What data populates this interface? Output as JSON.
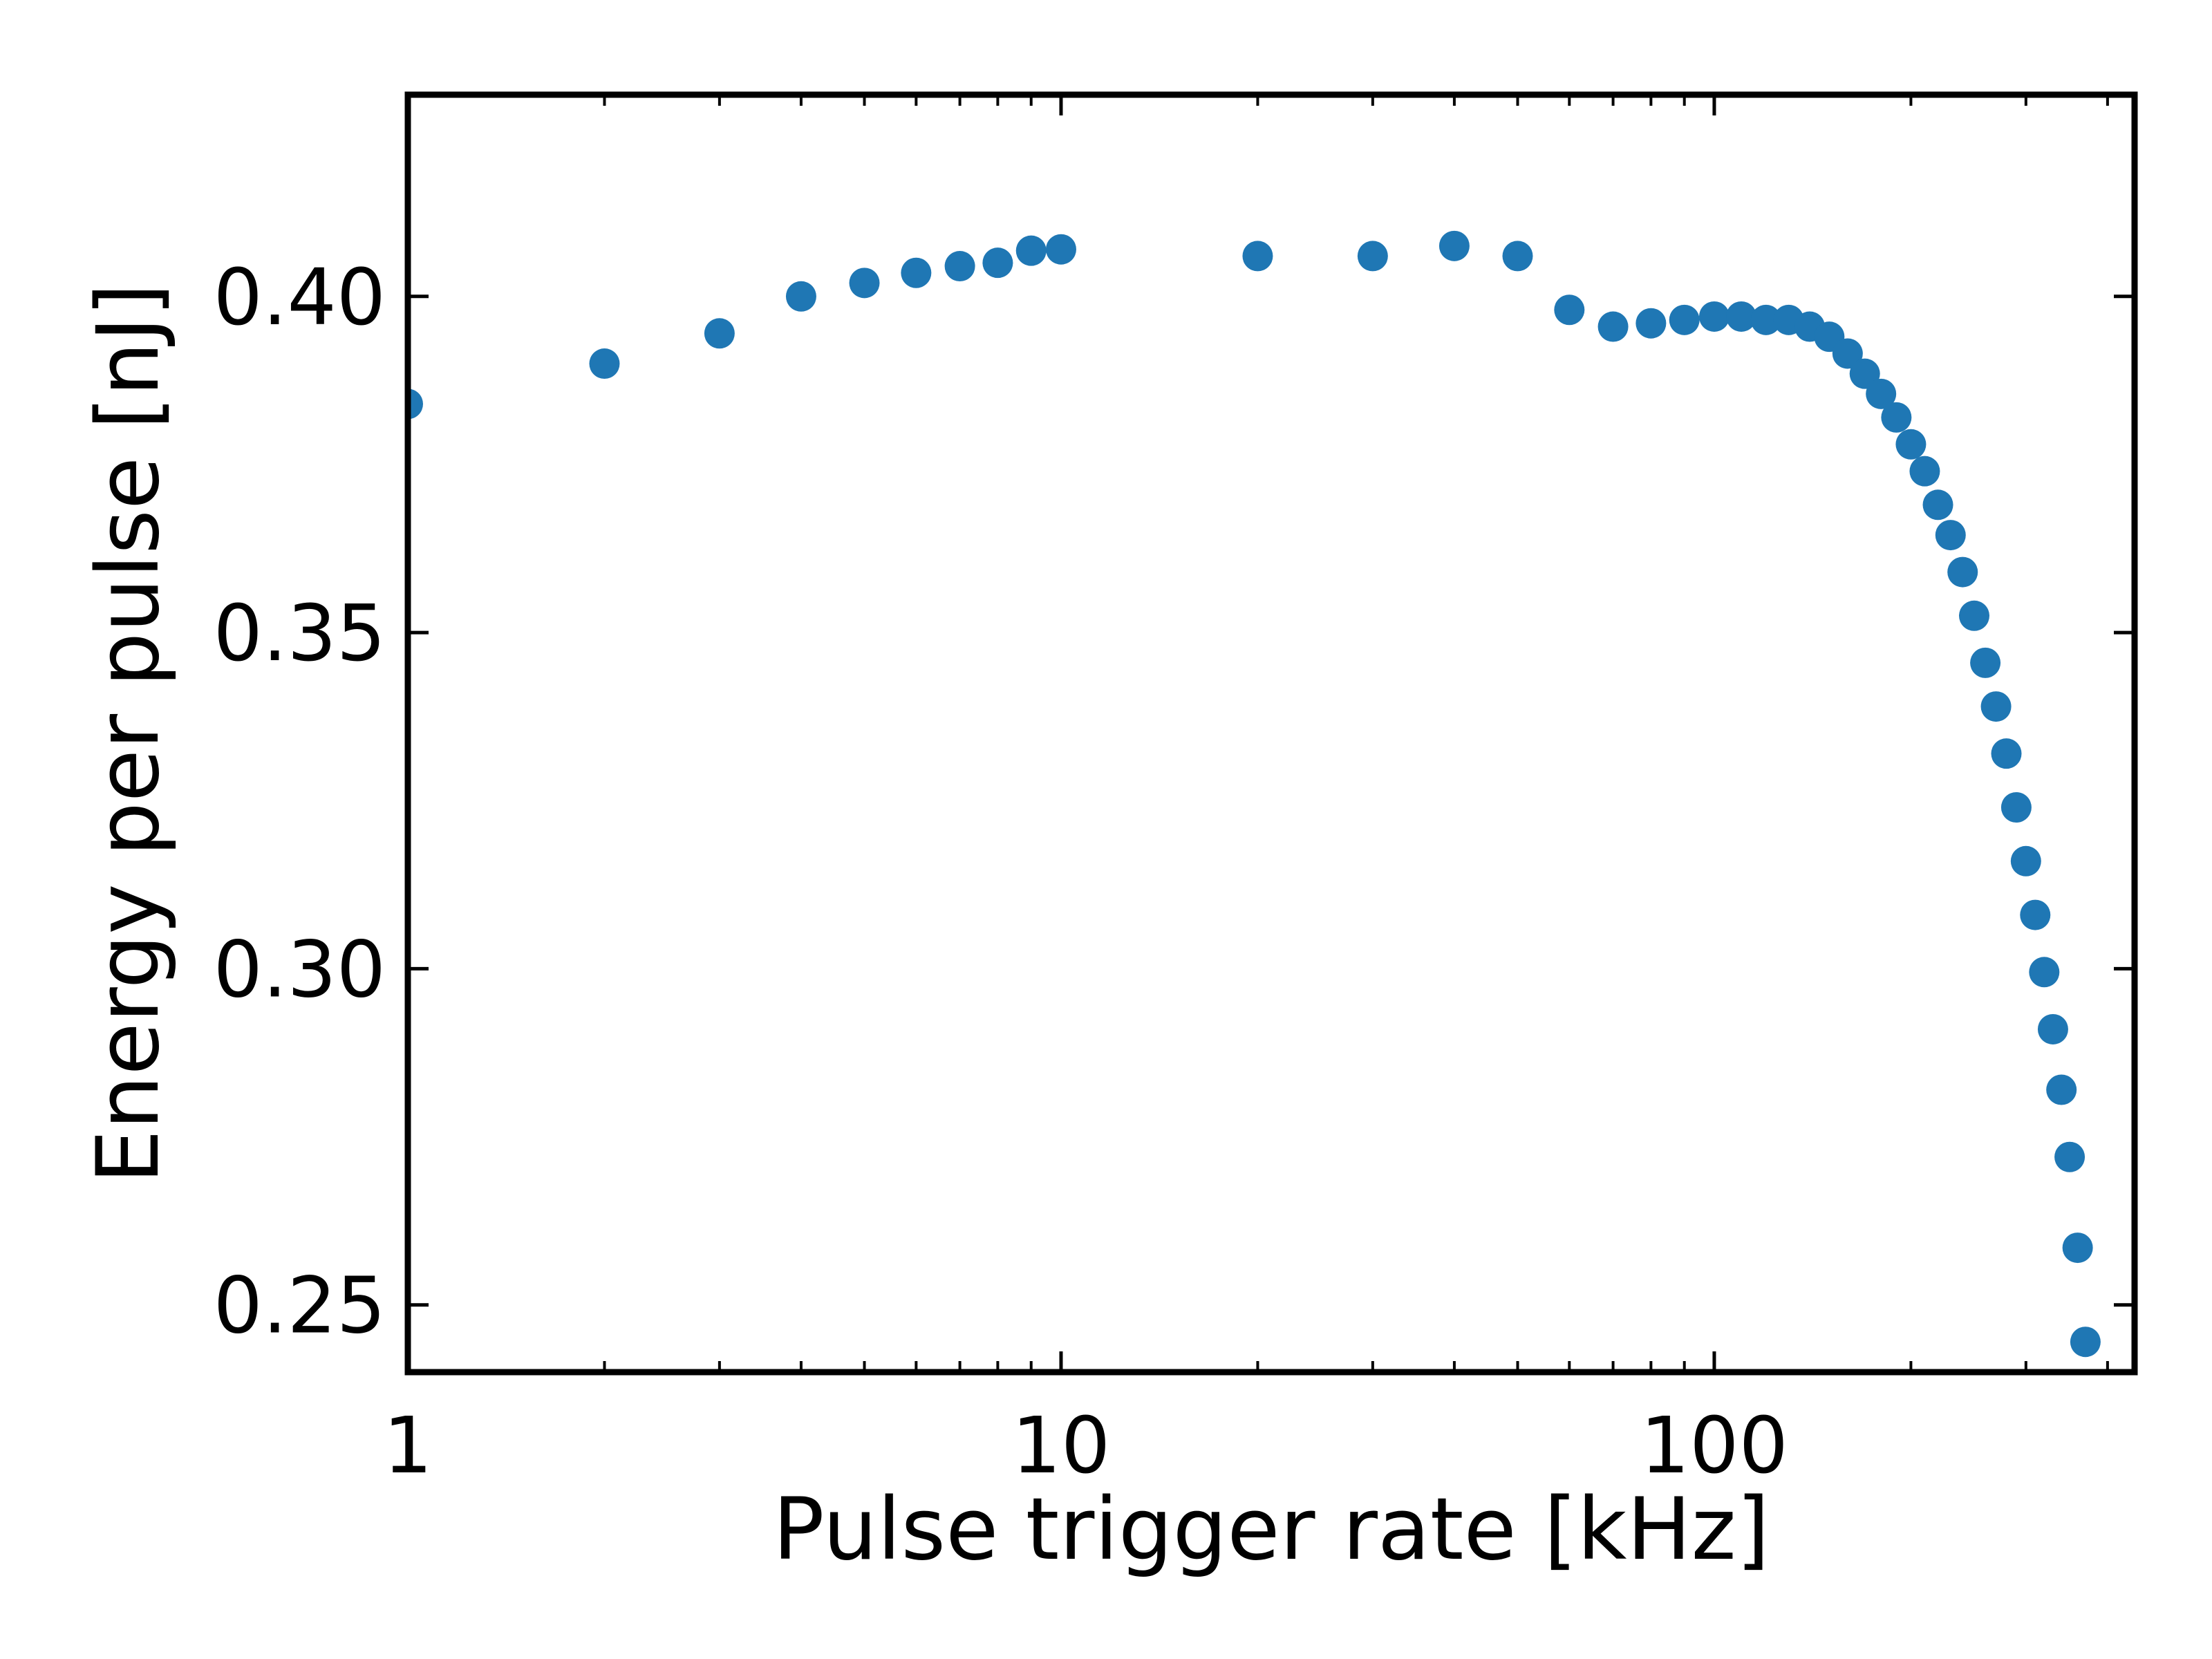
{
  "chart_data": {
    "type": "scatter",
    "xlabel": "Pulse trigger rate [kHz]",
    "ylabel": "Energy per pulse [nJ]",
    "x_scale": "log",
    "xlim": [
      1,
      440
    ],
    "ylim": [
      0.24,
      0.43
    ],
    "grid": false,
    "x_ticks": [
      {
        "value": 1,
        "label": "1"
      },
      {
        "value": 10,
        "label": "10"
      },
      {
        "value": 100,
        "label": "100"
      }
    ],
    "y_ticks": [
      {
        "value": 0.25,
        "label": "0.25"
      },
      {
        "value": 0.3,
        "label": "0.30"
      },
      {
        "value": 0.35,
        "label": "0.35"
      },
      {
        "value": 0.4,
        "label": "0.40"
      }
    ],
    "marker_color": "#1f77b4",
    "series": [
      {
        "x": [
          1,
          2,
          3,
          4,
          5,
          6,
          7,
          8,
          9,
          10,
          20,
          30,
          40,
          50,
          60,
          70,
          80,
          90,
          100,
          110,
          120,
          130,
          140,
          150,
          160,
          170,
          180,
          190,
          200,
          210,
          220,
          230,
          240,
          250,
          260,
          270,
          280,
          290,
          300,
          310,
          320,
          330,
          340,
          350,
          360,
          370
        ],
        "y": [
          0.384,
          0.39,
          0.3945,
          0.4,
          0.402,
          0.4035,
          0.4045,
          0.405,
          0.4068,
          0.407,
          0.406,
          0.406,
          0.4075,
          0.406,
          0.398,
          0.3955,
          0.396,
          0.3965,
          0.397,
          0.397,
          0.3965,
          0.3965,
          0.3955,
          0.394,
          0.3915,
          0.3885,
          0.3855,
          0.382,
          0.378,
          0.374,
          0.369,
          0.3645,
          0.359,
          0.3525,
          0.3455,
          0.339,
          0.332,
          0.324,
          0.316,
          0.308,
          0.2995,
          0.291,
          0.282,
          0.272,
          0.2585,
          0.2445
        ]
      }
    ]
  }
}
